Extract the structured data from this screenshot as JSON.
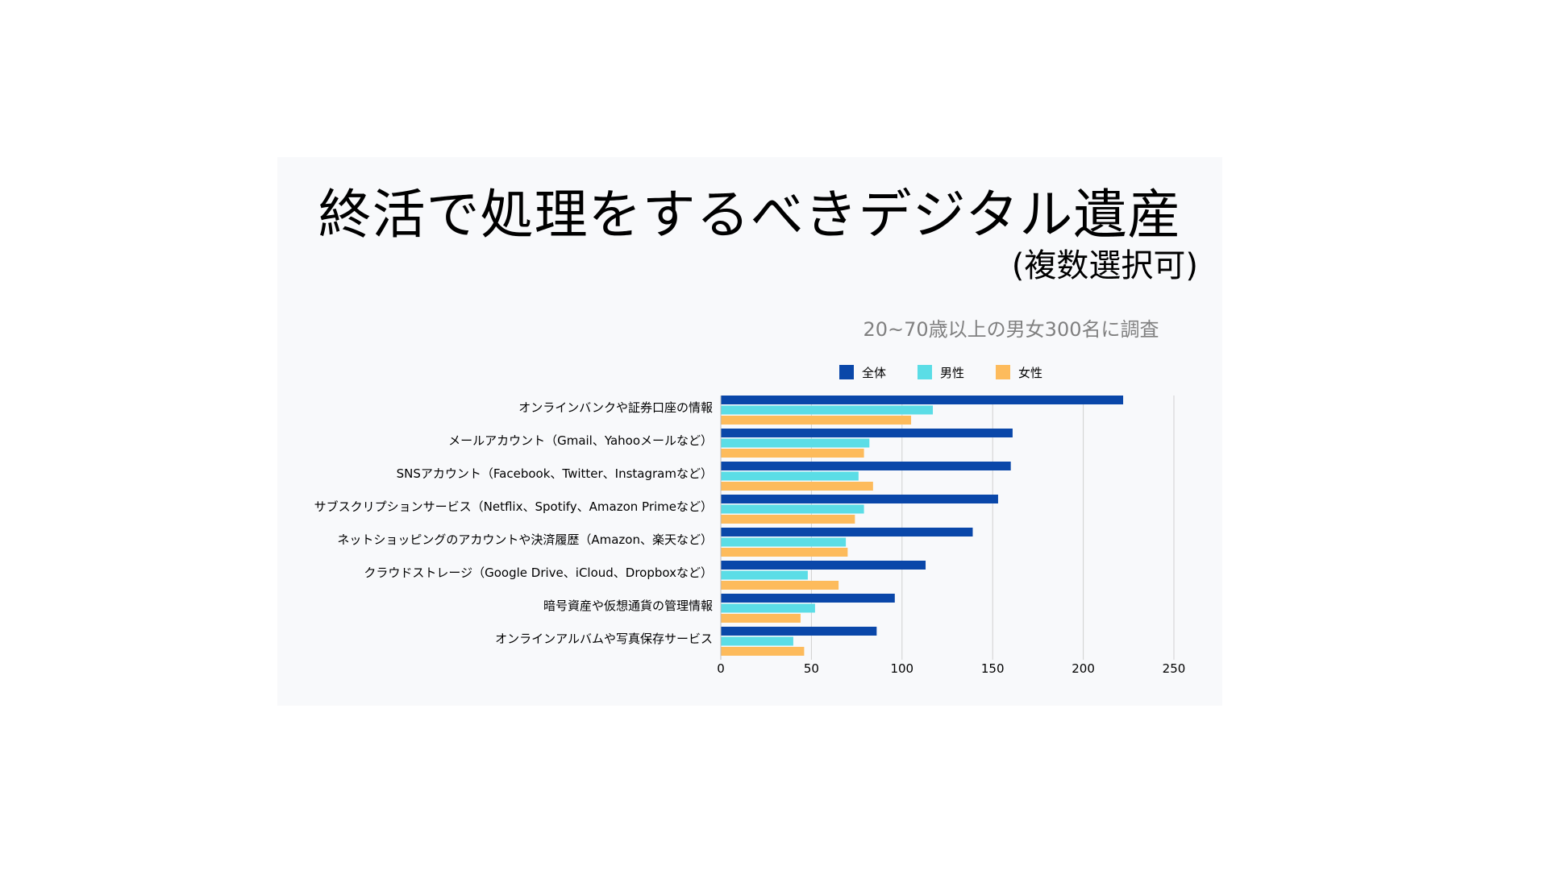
{
  "title": "終活で処理をするべきデジタル遺産",
  "subtitle": "(複数選択可)",
  "chart_data": {
    "type": "bar",
    "orientation": "horizontal",
    "title": "20~70歳以上の男女300名に調査",
    "categories": [
      "オンラインバンクや証券口座の情報",
      "メールアカウント（Gmail、Yahooメールなど）",
      "SNSアカウント（Facebook、Twitter、Instagramなど）",
      "サブスクリプションサービス（Netflix、Spotify、Amazon Primeなど）",
      "ネットショッピングのアカウントや決済履歴（Amazon、楽天など）",
      "クラウドストレージ（Google Drive、iCloud、Dropboxなど）",
      "暗号資産や仮想通貨の管理情報",
      "オンラインアルバムや写真保存サービス"
    ],
    "series": [
      {
        "name": "全体",
        "color": "#0a47a9",
        "values": [
          222,
          161,
          160,
          153,
          139,
          113,
          96,
          86
        ]
      },
      {
        "name": "男性",
        "color": "#5bdde6",
        "values": [
          117,
          82,
          76,
          79,
          69,
          48,
          52,
          40
        ]
      },
      {
        "name": "女性",
        "color": "#fdbb5c",
        "values": [
          105,
          79,
          84,
          74,
          70,
          65,
          44,
          46
        ]
      }
    ],
    "xticks": [
      "0",
      "50",
      "100",
      "150",
      "200",
      "250"
    ],
    "xlim": [
      0,
      250
    ],
    "xlabel": "",
    "ylabel": "",
    "grid": true,
    "legend_position": "top"
  }
}
